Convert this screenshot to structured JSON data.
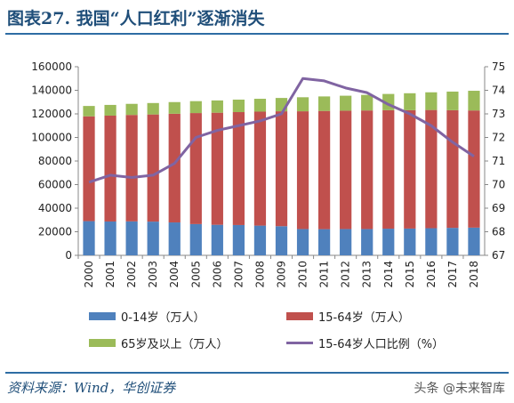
{
  "header": {
    "title": "图表27. 我国“人口红利”逐渐消失"
  },
  "footer": {
    "source": "资料来源：Wind，华创证券",
    "watermark": "头条 @未来智库"
  },
  "chart_data": {
    "type": "bar",
    "stacked": true,
    "categories": [
      "2000",
      "2001",
      "2002",
      "2003",
      "2004",
      "2005",
      "2006",
      "2007",
      "2008",
      "2009",
      "2010",
      "2011",
      "2012",
      "2013",
      "2014",
      "2015",
      "2016",
      "2017",
      "2018"
    ],
    "series": [
      {
        "name": "0-14岁（万人）",
        "color": "#4f81bd",
        "values": [
          29000,
          28700,
          28800,
          28600,
          27900,
          26500,
          25900,
          25700,
          25200,
          24700,
          22300,
          22200,
          22300,
          22300,
          22600,
          22700,
          23000,
          23300,
          23500
        ]
      },
      {
        "name": "15-64岁（万人）",
        "color": "#c0504d",
        "values": [
          88900,
          89800,
          90300,
          90900,
          92200,
          94200,
          95100,
          95800,
          96700,
          97500,
          99900,
          100300,
          100400,
          100600,
          100500,
          100400,
          100300,
          99800,
          99400
        ]
      },
      {
        "name": "65岁及以上（万人）",
        "color": "#9bbb59",
        "values": [
          8800,
          9100,
          9400,
          9700,
          9900,
          10100,
          10400,
          10600,
          10900,
          11300,
          11900,
          12300,
          12700,
          13200,
          13800,
          14400,
          15000,
          15800,
          16700
        ]
      },
      {
        "name": "15-64岁人口比例（%）",
        "color": "#8064a2",
        "type": "line",
        "axis": "right",
        "values": [
          70.1,
          70.4,
          70.3,
          70.4,
          70.9,
          72.0,
          72.3,
          72.5,
          72.7,
          73.0,
          74.5,
          74.4,
          74.1,
          73.9,
          73.4,
          73.0,
          72.5,
          71.8,
          71.2
        ]
      }
    ],
    "y_left": {
      "min": 0,
      "max": 160000,
      "ticks": [
        "0",
        "20000",
        "40000",
        "60000",
        "80000",
        "100000",
        "120000",
        "140000",
        "160000"
      ]
    },
    "y_right": {
      "min": 67,
      "max": 75,
      "ticks": [
        "67",
        "68",
        "69",
        "70",
        "71",
        "72",
        "73",
        "74",
        "75"
      ]
    },
    "grid": false,
    "legend": "bottom"
  }
}
